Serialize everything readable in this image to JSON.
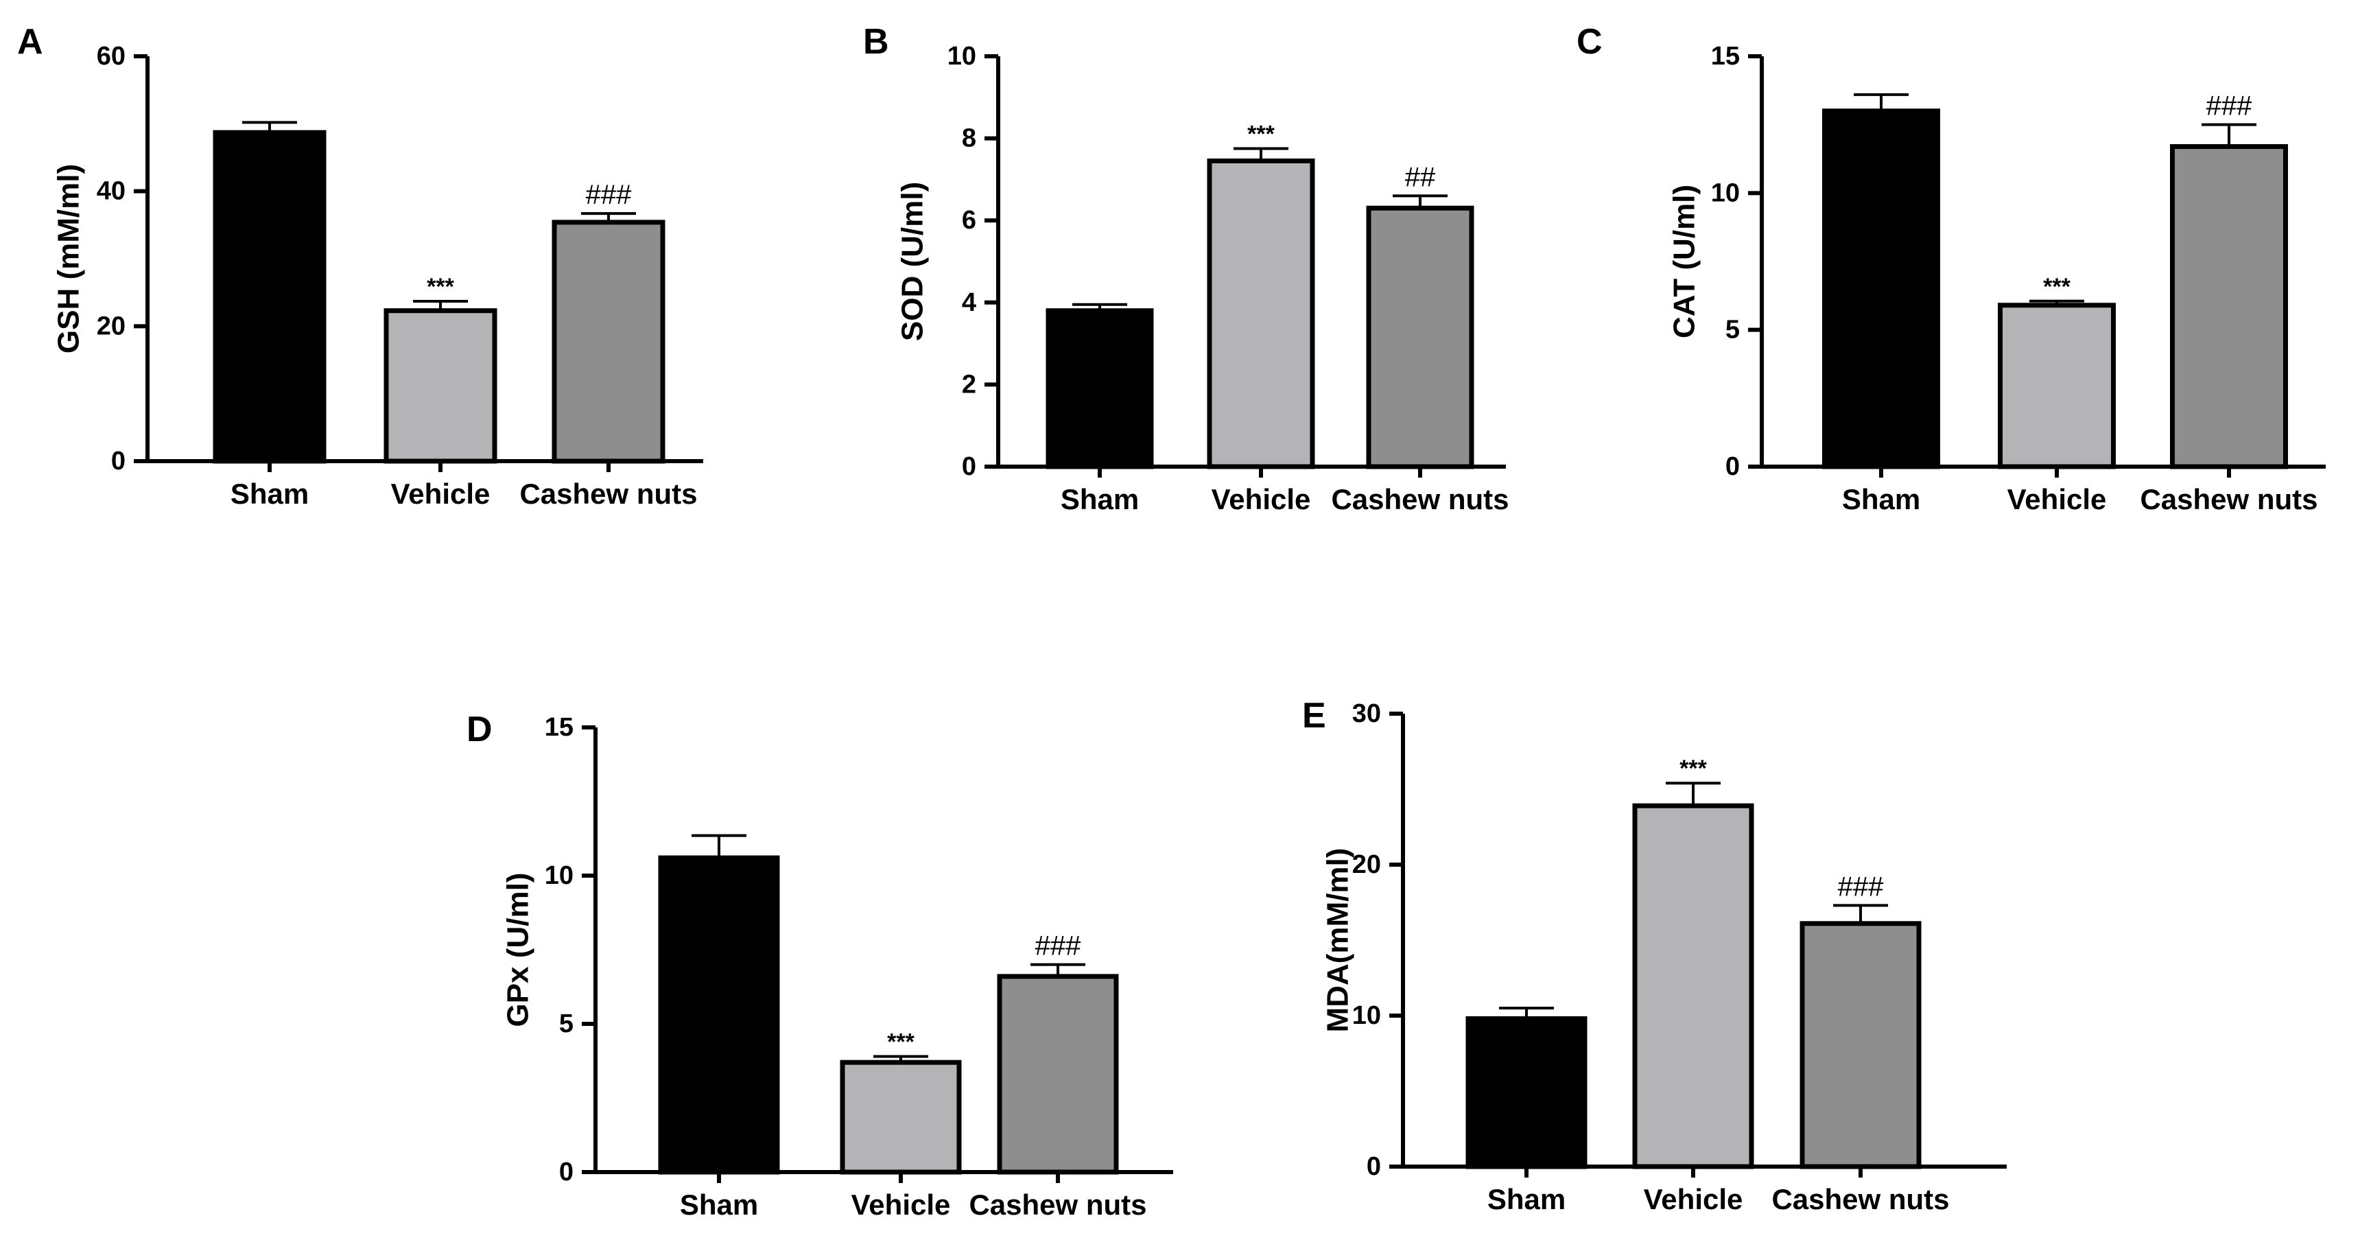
{
  "chart_data": [
    {
      "panel": "A",
      "type": "bar",
      "ylabel": "GSH (mM/ml)",
      "ylim": [
        0,
        60
      ],
      "yticks": [
        0,
        20,
        40,
        60
      ],
      "categories": [
        "Sham",
        "Vehicle",
        "Cashew nuts"
      ],
      "values": [
        48.7,
        22.3,
        35.4
      ],
      "errors": [
        1.5,
        1.4,
        1.3
      ],
      "annotations": [
        "",
        "***",
        "###"
      ],
      "colors": [
        "#000000",
        "#b4b4b6",
        "#8e8e8e"
      ]
    },
    {
      "panel": "B",
      "type": "bar",
      "ylabel": "SOD (U/ml)",
      "ylim": [
        0,
        10
      ],
      "yticks": [
        0,
        2,
        4,
        6,
        8,
        10
      ],
      "categories": [
        "Sham",
        "Vehicle",
        "Cashew nuts"
      ],
      "values": [
        3.8,
        7.45,
        6.3
      ],
      "errors": [
        0.15,
        0.3,
        0.3
      ],
      "annotations": [
        "",
        "***",
        "##"
      ],
      "colors": [
        "#000000",
        "#b4b4b6",
        "#8e8e8e"
      ]
    },
    {
      "panel": "C",
      "type": "bar",
      "ylabel": "CAT (U/ml)",
      "ylim": [
        0,
        15
      ],
      "yticks": [
        0,
        5,
        10,
        15
      ],
      "categories": [
        "Sham",
        "Vehicle",
        "Cashew nuts"
      ],
      "values": [
        13.0,
        5.9,
        11.7
      ],
      "errors": [
        0.6,
        0.15,
        0.8
      ],
      "annotations": [
        "",
        "***",
        "###"
      ],
      "colors": [
        "#000000",
        "#b4b4b6",
        "#8e8e8e"
      ]
    },
    {
      "panel": "D",
      "type": "bar",
      "ylabel": "GPx (U/ml)",
      "ylim": [
        0,
        15
      ],
      "yticks": [
        0,
        5,
        10,
        15
      ],
      "categories": [
        "Sham",
        "Vehicle",
        "Cashew nuts"
      ],
      "values": [
        10.6,
        3.7,
        6.6
      ],
      "errors": [
        0.75,
        0.2,
        0.4
      ],
      "annotations": [
        "",
        "***",
        "###"
      ],
      "colors": [
        "#000000",
        "#b4b4b6",
        "#8e8e8e"
      ]
    },
    {
      "panel": "E",
      "type": "bar",
      "ylabel": "MDA(mM/ml)",
      "ylim": [
        0,
        30
      ],
      "yticks": [
        0,
        10,
        20,
        30
      ],
      "categories": [
        "Sham",
        "Vehicle",
        "Cashew nuts"
      ],
      "values": [
        9.8,
        23.9,
        16.1
      ],
      "errors": [
        0.7,
        1.5,
        1.2
      ],
      "annotations": [
        "",
        "***",
        "###"
      ],
      "colors": [
        "#000000",
        "#b4b4b6",
        "#8e8e8e"
      ]
    }
  ]
}
